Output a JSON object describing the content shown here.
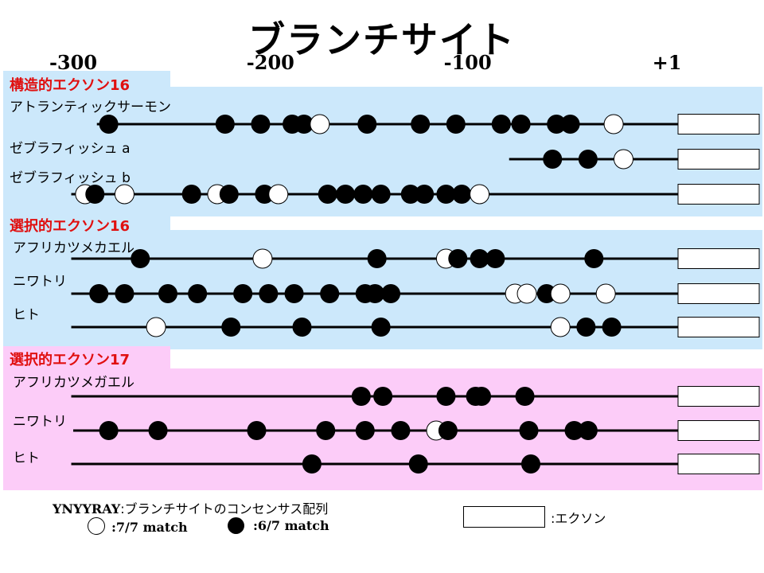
{
  "title": "ブランチサイト",
  "axis": {
    "ticks": [
      {
        "label": "-300",
        "value": -300
      },
      {
        "label": "-200",
        "value": -200
      },
      {
        "label": "-100",
        "value": -100
      },
      {
        "label": "+1",
        "value": 1
      }
    ]
  },
  "colors": {
    "panel_blue": "#cce8fb",
    "panel_pink": "#fcccf8",
    "section_title": "#e01010",
    "line": "#000000"
  },
  "sections": [
    {
      "title": "構造的エクソン16",
      "color": "#cce8fb",
      "tracks": [
        {
          "species": "アトランティックサーモン",
          "line_start": -288,
          "sites": [
            {
              "pos": -282,
              "type": "black"
            },
            {
              "pos": -223,
              "type": "black"
            },
            {
              "pos": -205,
              "type": "black"
            },
            {
              "pos": -189,
              "type": "black"
            },
            {
              "pos": -183,
              "type": "black"
            },
            {
              "pos": -175,
              "type": "white"
            },
            {
              "pos": -151,
              "type": "black"
            },
            {
              "pos": -124,
              "type": "black"
            },
            {
              "pos": -106,
              "type": "black"
            },
            {
              "pos": -83,
              "type": "black"
            },
            {
              "pos": -73,
              "type": "black"
            },
            {
              "pos": -55,
              "type": "black"
            },
            {
              "pos": -48,
              "type": "black"
            },
            {
              "pos": -26,
              "type": "white"
            }
          ]
        },
        {
          "species": "ゼブラフィッシュ a",
          "line_start": -79,
          "sites": [
            {
              "pos": -57,
              "type": "black"
            },
            {
              "pos": -39,
              "type": "black"
            },
            {
              "pos": -21,
              "type": "white"
            }
          ]
        },
        {
          "species": "ゼブラフィッシュ b",
          "line_start": -301,
          "sites": [
            {
              "pos": -294,
              "type": "white"
            },
            {
              "pos": -289,
              "type": "black"
            },
            {
              "pos": -274,
              "type": "white"
            },
            {
              "pos": -240,
              "type": "black"
            },
            {
              "pos": -227,
              "type": "white"
            },
            {
              "pos": -221,
              "type": "black"
            },
            {
              "pos": -203,
              "type": "black"
            },
            {
              "pos": -196,
              "type": "white"
            },
            {
              "pos": -171,
              "type": "black"
            },
            {
              "pos": -162,
              "type": "black"
            },
            {
              "pos": -153,
              "type": "black"
            },
            {
              "pos": -144,
              "type": "black"
            },
            {
              "pos": -129,
              "type": "black"
            },
            {
              "pos": -122,
              "type": "black"
            },
            {
              "pos": -111,
              "type": "black"
            },
            {
              "pos": -103,
              "type": "black"
            },
            {
              "pos": -94,
              "type": "white"
            }
          ]
        }
      ]
    },
    {
      "title": "選択的エクソン16",
      "color": "#cce8fb",
      "tracks": [
        {
          "species": "アフリカツメカエル",
          "line_start": -301,
          "sites": [
            {
              "pos": -266,
              "type": "black"
            },
            {
              "pos": -204,
              "type": "white"
            },
            {
              "pos": -146,
              "type": "black"
            },
            {
              "pos": -111,
              "type": "white"
            },
            {
              "pos": -105,
              "type": "black"
            },
            {
              "pos": -94,
              "type": "black"
            },
            {
              "pos": -86,
              "type": "black"
            },
            {
              "pos": -36,
              "type": "black"
            }
          ]
        },
        {
          "species": "ニワトリ",
          "line_start": -301,
          "sites": [
            {
              "pos": -287,
              "type": "black"
            },
            {
              "pos": -274,
              "type": "black"
            },
            {
              "pos": -252,
              "type": "black"
            },
            {
              "pos": -237,
              "type": "black"
            },
            {
              "pos": -214,
              "type": "black"
            },
            {
              "pos": -201,
              "type": "black"
            },
            {
              "pos": -188,
              "type": "black"
            },
            {
              "pos": -170,
              "type": "black"
            },
            {
              "pos": -152,
              "type": "black"
            },
            {
              "pos": -147,
              "type": "black"
            },
            {
              "pos": -139,
              "type": "black"
            },
            {
              "pos": -76,
              "type": "white"
            },
            {
              "pos": -70,
              "type": "white"
            },
            {
              "pos": -60,
              "type": "black"
            },
            {
              "pos": -53,
              "type": "white"
            },
            {
              "pos": -30,
              "type": "white"
            }
          ]
        },
        {
          "species": "ヒト",
          "line_start": -301,
          "sites": [
            {
              "pos": -258,
              "type": "white"
            },
            {
              "pos": -220,
              "type": "black"
            },
            {
              "pos": -184,
              "type": "black"
            },
            {
              "pos": -144,
              "type": "black"
            },
            {
              "pos": -53,
              "type": "white"
            },
            {
              "pos": -40,
              "type": "black"
            },
            {
              "pos": -27,
              "type": "black"
            }
          ]
        }
      ]
    },
    {
      "title": "選択的エクソン17",
      "color": "#fcccf8",
      "tracks": [
        {
          "species": "アフリカツメガエル",
          "line_start": -301,
          "sites": [
            {
              "pos": -154,
              "type": "black"
            },
            {
              "pos": -143,
              "type": "black"
            },
            {
              "pos": -111,
              "type": "black"
            },
            {
              "pos": -96,
              "type": "black"
            },
            {
              "pos": -93,
              "type": "black"
            },
            {
              "pos": -71,
              "type": "black"
            }
          ]
        },
        {
          "species": "ニワトリ",
          "line_start": -300,
          "sites": [
            {
              "pos": -282,
              "type": "black"
            },
            {
              "pos": -257,
              "type": "black"
            },
            {
              "pos": -207,
              "type": "black"
            },
            {
              "pos": -172,
              "type": "black"
            },
            {
              "pos": -152,
              "type": "black"
            },
            {
              "pos": -134,
              "type": "black"
            },
            {
              "pos": -116,
              "type": "white"
            },
            {
              "pos": -110,
              "type": "black"
            },
            {
              "pos": -69,
              "type": "black"
            },
            {
              "pos": -46,
              "type": "black"
            },
            {
              "pos": -39,
              "type": "black"
            }
          ]
        },
        {
          "species": "ヒト",
          "line_start": -301,
          "sites": [
            {
              "pos": -179,
              "type": "black"
            },
            {
              "pos": -125,
              "type": "black"
            },
            {
              "pos": -68,
              "type": "black"
            }
          ]
        }
      ]
    }
  ],
  "legend": {
    "consensus_bold": "YNYYRAY",
    "consensus_rest": ":ブランチサイトのコンセンサス配列",
    "white_label": ":7/7 match",
    "black_label": ":6/7 match",
    "exon_label": ":エクソン"
  }
}
